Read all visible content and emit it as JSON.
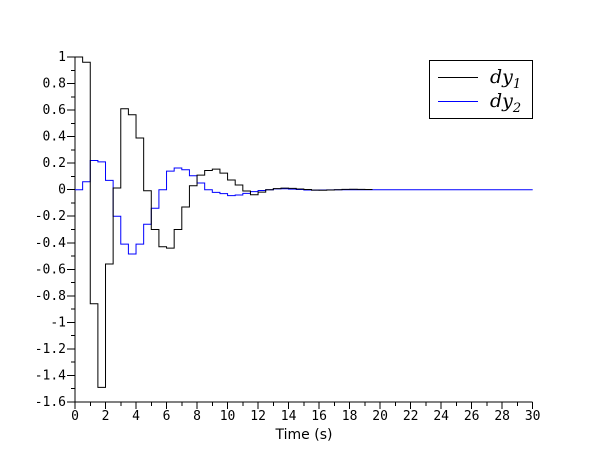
{
  "figure": {
    "background": "#ffffff",
    "x_axis_title": "Time (s)",
    "legend": {
      "position": "top-right",
      "items": [
        {
          "base": "dy",
          "sub": "1"
        },
        {
          "base": "dy",
          "sub": "2"
        }
      ]
    }
  },
  "chart_data": {
    "type": "line",
    "line_style": "step-post",
    "title": "",
    "xlabel": "Time (s)",
    "ylabel": "",
    "xlim": [
      0,
      30
    ],
    "ylim": [
      -1.6,
      1
    ],
    "grid": false,
    "legend_position": "top-right",
    "axis_color": "#000000",
    "x_tick_labels": [
      "0",
      "2",
      "4",
      "6",
      "8",
      "10",
      "12",
      "14",
      "16",
      "18",
      "20",
      "22",
      "24",
      "26",
      "28",
      "30"
    ],
    "y_tick_labels": [
      "1",
      "0.8",
      "0.6",
      "0.4",
      "0.2",
      "0",
      "-0.2",
      "-0.4",
      "-0.6",
      "-0.8",
      "-1",
      "-1.2",
      "-1.4",
      "-1.6"
    ],
    "x_minor_tick_step": 1,
    "y_minor_tick_step": 0.1,
    "step_width": 0.5,
    "series": [
      {
        "name": "dy1",
        "color": "#000000",
        "values": [
          1.0,
          0.96,
          -0.86,
          -1.49,
          -0.56,
          0.013,
          0.61,
          0.565,
          0.39,
          -0.008,
          -0.3,
          -0.43,
          -0.44,
          -0.3,
          -0.13,
          0.03,
          0.11,
          0.145,
          0.155,
          0.125,
          0.073,
          0.035,
          -0.01,
          -0.038,
          -0.018,
          0.0,
          0.008,
          0.012,
          0.01,
          0.005,
          0.001,
          -0.003,
          -0.004,
          -0.002,
          0.0,
          0.002,
          0.003,
          0.002,
          0.001
        ]
      },
      {
        "name": "dy2",
        "color": "#0000ff",
        "values": [
          0.0,
          0.06,
          0.22,
          0.21,
          0.07,
          -0.2,
          -0.41,
          -0.485,
          -0.41,
          -0.26,
          -0.14,
          0.0,
          0.14,
          0.163,
          0.15,
          0.105,
          0.05,
          0.0,
          -0.02,
          -0.03,
          -0.045,
          -0.04,
          -0.028,
          -0.015,
          -0.006,
          0.0,
          0.006,
          0.007,
          0.004,
          0.001,
          -0.002,
          -0.003,
          -0.002,
          -0.001,
          0.0,
          0.0,
          0.0,
          0.0,
          0.0,
          0.0,
          0.0,
          0.0,
          0.0,
          0.0,
          0.0,
          0.0,
          0.0,
          0.0,
          0.0,
          0.0,
          0.0,
          0.0,
          0.0,
          0.0,
          0.0,
          0.0,
          0.0,
          0.0,
          0.0,
          0.0
        ]
      }
    ]
  }
}
